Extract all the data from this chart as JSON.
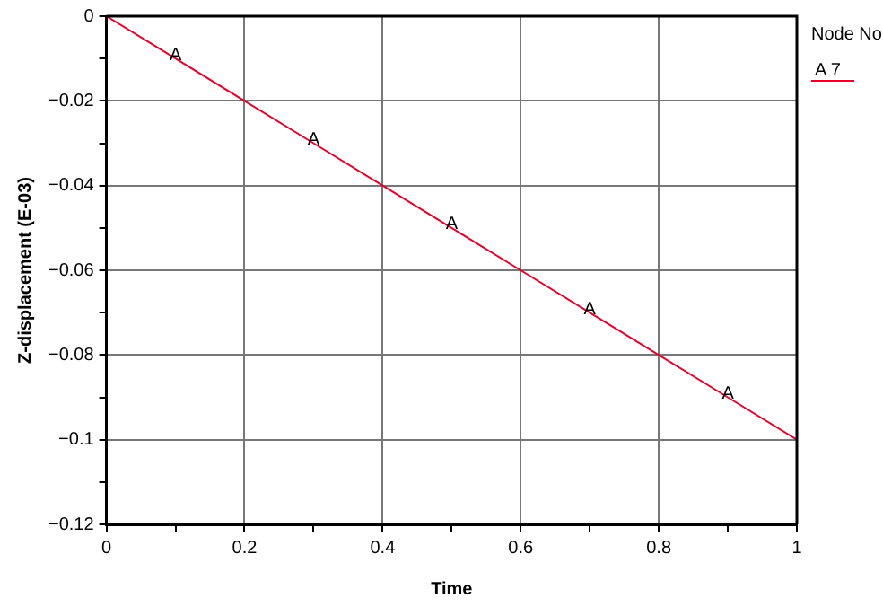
{
  "chart_data": {
    "type": "line",
    "xlabel": "Time",
    "ylabel": "Z-displacement (E-03)",
    "legend_title": "Node No",
    "x": [
      0,
      0.1,
      0.2,
      0.3,
      0.4,
      0.5,
      0.6,
      0.7,
      0.8,
      0.9,
      1
    ],
    "series": [
      {
        "name": "A 7",
        "color": "#e8002a",
        "values": [
          0,
          -0.01,
          -0.02,
          -0.03,
          -0.04,
          -0.05,
          -0.06,
          -0.07,
          -0.08,
          -0.09,
          -0.1
        ]
      }
    ],
    "xlim": [
      0,
      1
    ],
    "ylim": [
      -0.12,
      0
    ],
    "xticks": [
      0,
      {
        "value": 0.1,
        "label": null
      },
      0.2,
      {
        "value": 0.3,
        "label": null
      },
      0.4,
      {
        "value": 0.5,
        "label": null
      },
      0.6,
      {
        "value": 0.7,
        "label": null
      },
      0.8,
      {
        "value": 0.9,
        "label": null
      },
      1
    ],
    "yticks": [
      -0.12,
      {
        "value": -0.11,
        "label": null
      },
      -0.1,
      {
        "value": -0.09,
        "label": null
      },
      -0.08,
      {
        "value": -0.07,
        "label": null
      },
      -0.06,
      {
        "value": -0.05,
        "label": null
      },
      -0.04,
      {
        "value": -0.03,
        "label": null
      },
      -0.02,
      {
        "value": -0.01,
        "label": null
      },
      0
    ],
    "annotations": [
      {
        "text": "A",
        "x": 0.1,
        "y": -0.01
      },
      {
        "text": "A",
        "x": 0.3,
        "y": -0.03
      },
      {
        "text": "A",
        "x": 0.5,
        "y": -0.05
      },
      {
        "text": "A",
        "x": 0.7,
        "y": -0.07
      },
      {
        "text": "A",
        "x": 0.9,
        "y": -0.09
      }
    ],
    "grid": true,
    "legend": "top right",
    "marker": "none",
    "line_style": "solid"
  }
}
